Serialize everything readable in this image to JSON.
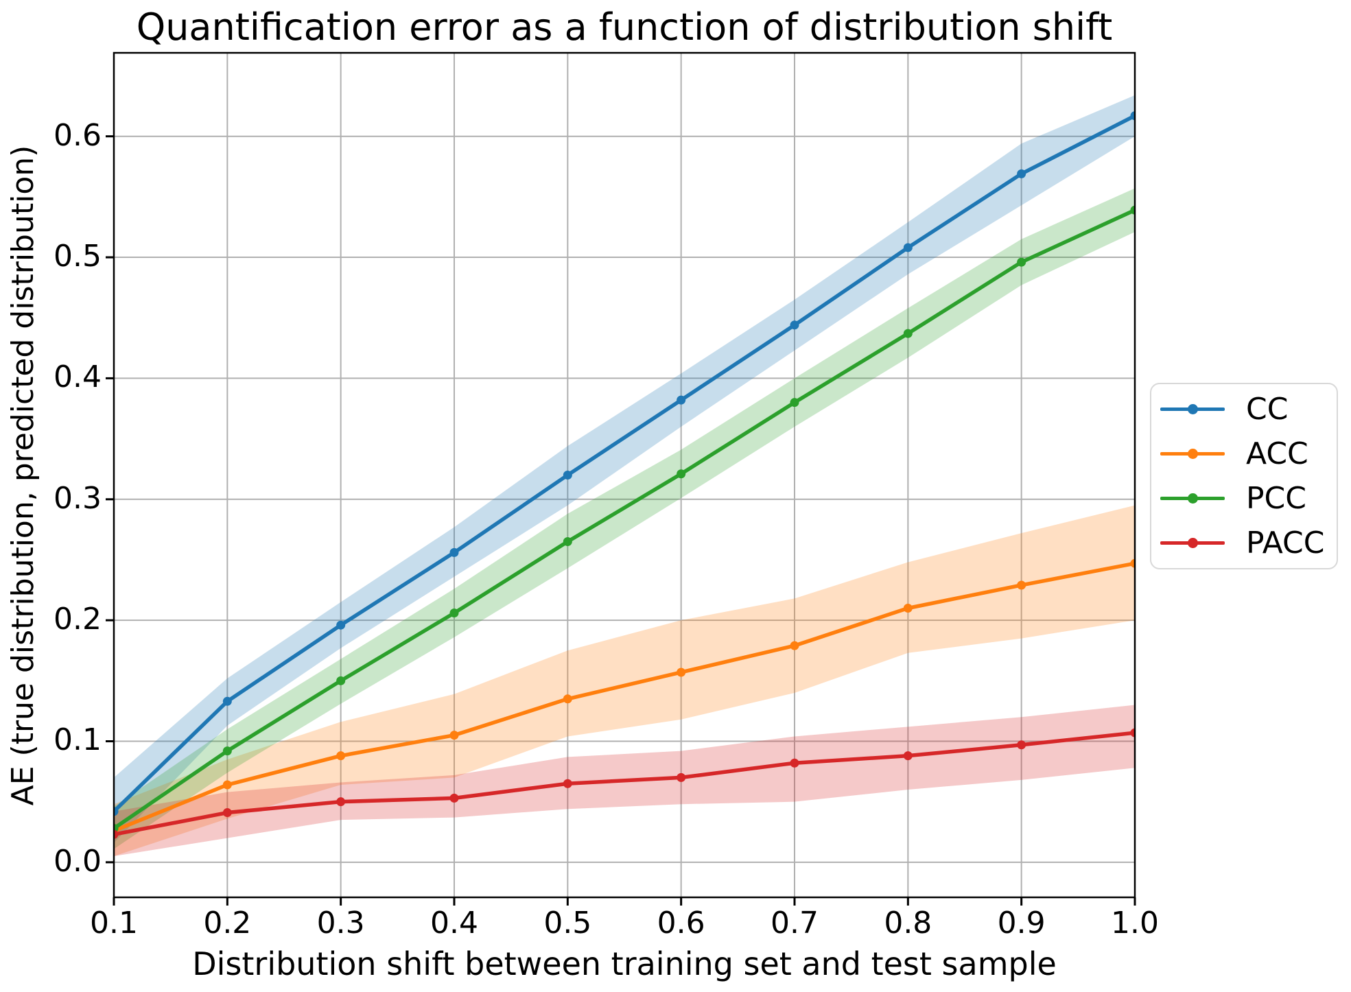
{
  "chart_data": {
    "type": "line",
    "title": "Quantification error as a function of distribution shift",
    "xlabel": "Distribution shift between training set and test sample",
    "ylabel": "AE (true distribution, predicted distribution)",
    "x": [
      0.1,
      0.2,
      0.3,
      0.4,
      0.5,
      0.6,
      0.7,
      0.8,
      0.9,
      1.0
    ],
    "xlim": [
      0.1,
      1.0
    ],
    "ylim": [
      -0.029,
      0.669
    ],
    "xticks": [
      0.1,
      0.2,
      0.3,
      0.4,
      0.5,
      0.6,
      0.7,
      0.8,
      0.9,
      1.0
    ],
    "yticks": [
      0.0,
      0.1,
      0.2,
      0.3,
      0.4,
      0.5,
      0.6
    ],
    "xtick_labels": [
      "0.1",
      "0.2",
      "0.3",
      "0.4",
      "0.5",
      "0.6",
      "0.7",
      "0.8",
      "0.9",
      "1.0"
    ],
    "ytick_labels": [
      "0.0",
      "0.1",
      "0.2",
      "0.3",
      "0.4",
      "0.5",
      "0.6"
    ],
    "grid": true,
    "legend_position": "right-outside",
    "band_alpha": 0.25,
    "series": [
      {
        "name": "CC",
        "color": "#1f77b4",
        "values": [
          0.042,
          0.133,
          0.196,
          0.256,
          0.32,
          0.382,
          0.444,
          0.508,
          0.569,
          0.617
        ],
        "band_upper": [
          0.07,
          0.152,
          0.215,
          0.277,
          0.344,
          0.404,
          0.465,
          0.529,
          0.594,
          0.634
        ],
        "band_lower": [
          0.016,
          0.113,
          0.177,
          0.236,
          0.295,
          0.36,
          0.423,
          0.486,
          0.543,
          0.6
        ]
      },
      {
        "name": "ACC",
        "color": "#ff7f0e",
        "values": [
          0.026,
          0.064,
          0.088,
          0.105,
          0.135,
          0.157,
          0.179,
          0.21,
          0.229,
          0.247
        ],
        "band_upper": [
          0.048,
          0.085,
          0.116,
          0.139,
          0.175,
          0.2,
          0.218,
          0.248,
          0.272,
          0.295
        ],
        "band_lower": [
          0.005,
          0.036,
          0.064,
          0.07,
          0.104,
          0.118,
          0.14,
          0.173,
          0.185,
          0.2
        ]
      },
      {
        "name": "PCC",
        "color": "#2ca02c",
        "values": [
          0.028,
          0.092,
          0.15,
          0.206,
          0.265,
          0.321,
          0.38,
          0.437,
          0.496,
          0.539
        ],
        "band_upper": [
          0.046,
          0.11,
          0.168,
          0.226,
          0.288,
          0.341,
          0.4,
          0.458,
          0.515,
          0.557
        ],
        "band_lower": [
          0.011,
          0.074,
          0.131,
          0.186,
          0.243,
          0.301,
          0.36,
          0.417,
          0.477,
          0.521
        ]
      },
      {
        "name": "PACC",
        "color": "#d62728",
        "values": [
          0.023,
          0.041,
          0.05,
          0.053,
          0.065,
          0.07,
          0.082,
          0.088,
          0.097,
          0.107
        ],
        "band_upper": [
          0.042,
          0.058,
          0.066,
          0.072,
          0.087,
          0.092,
          0.104,
          0.112,
          0.12,
          0.13
        ],
        "band_lower": [
          0.005,
          0.02,
          0.035,
          0.037,
          0.044,
          0.048,
          0.05,
          0.06,
          0.068,
          0.078
        ]
      }
    ],
    "style": {
      "grid_color": "#b0b0b0",
      "spine_color": "#000000",
      "background": "#ffffff",
      "text_color": "#000000"
    }
  }
}
